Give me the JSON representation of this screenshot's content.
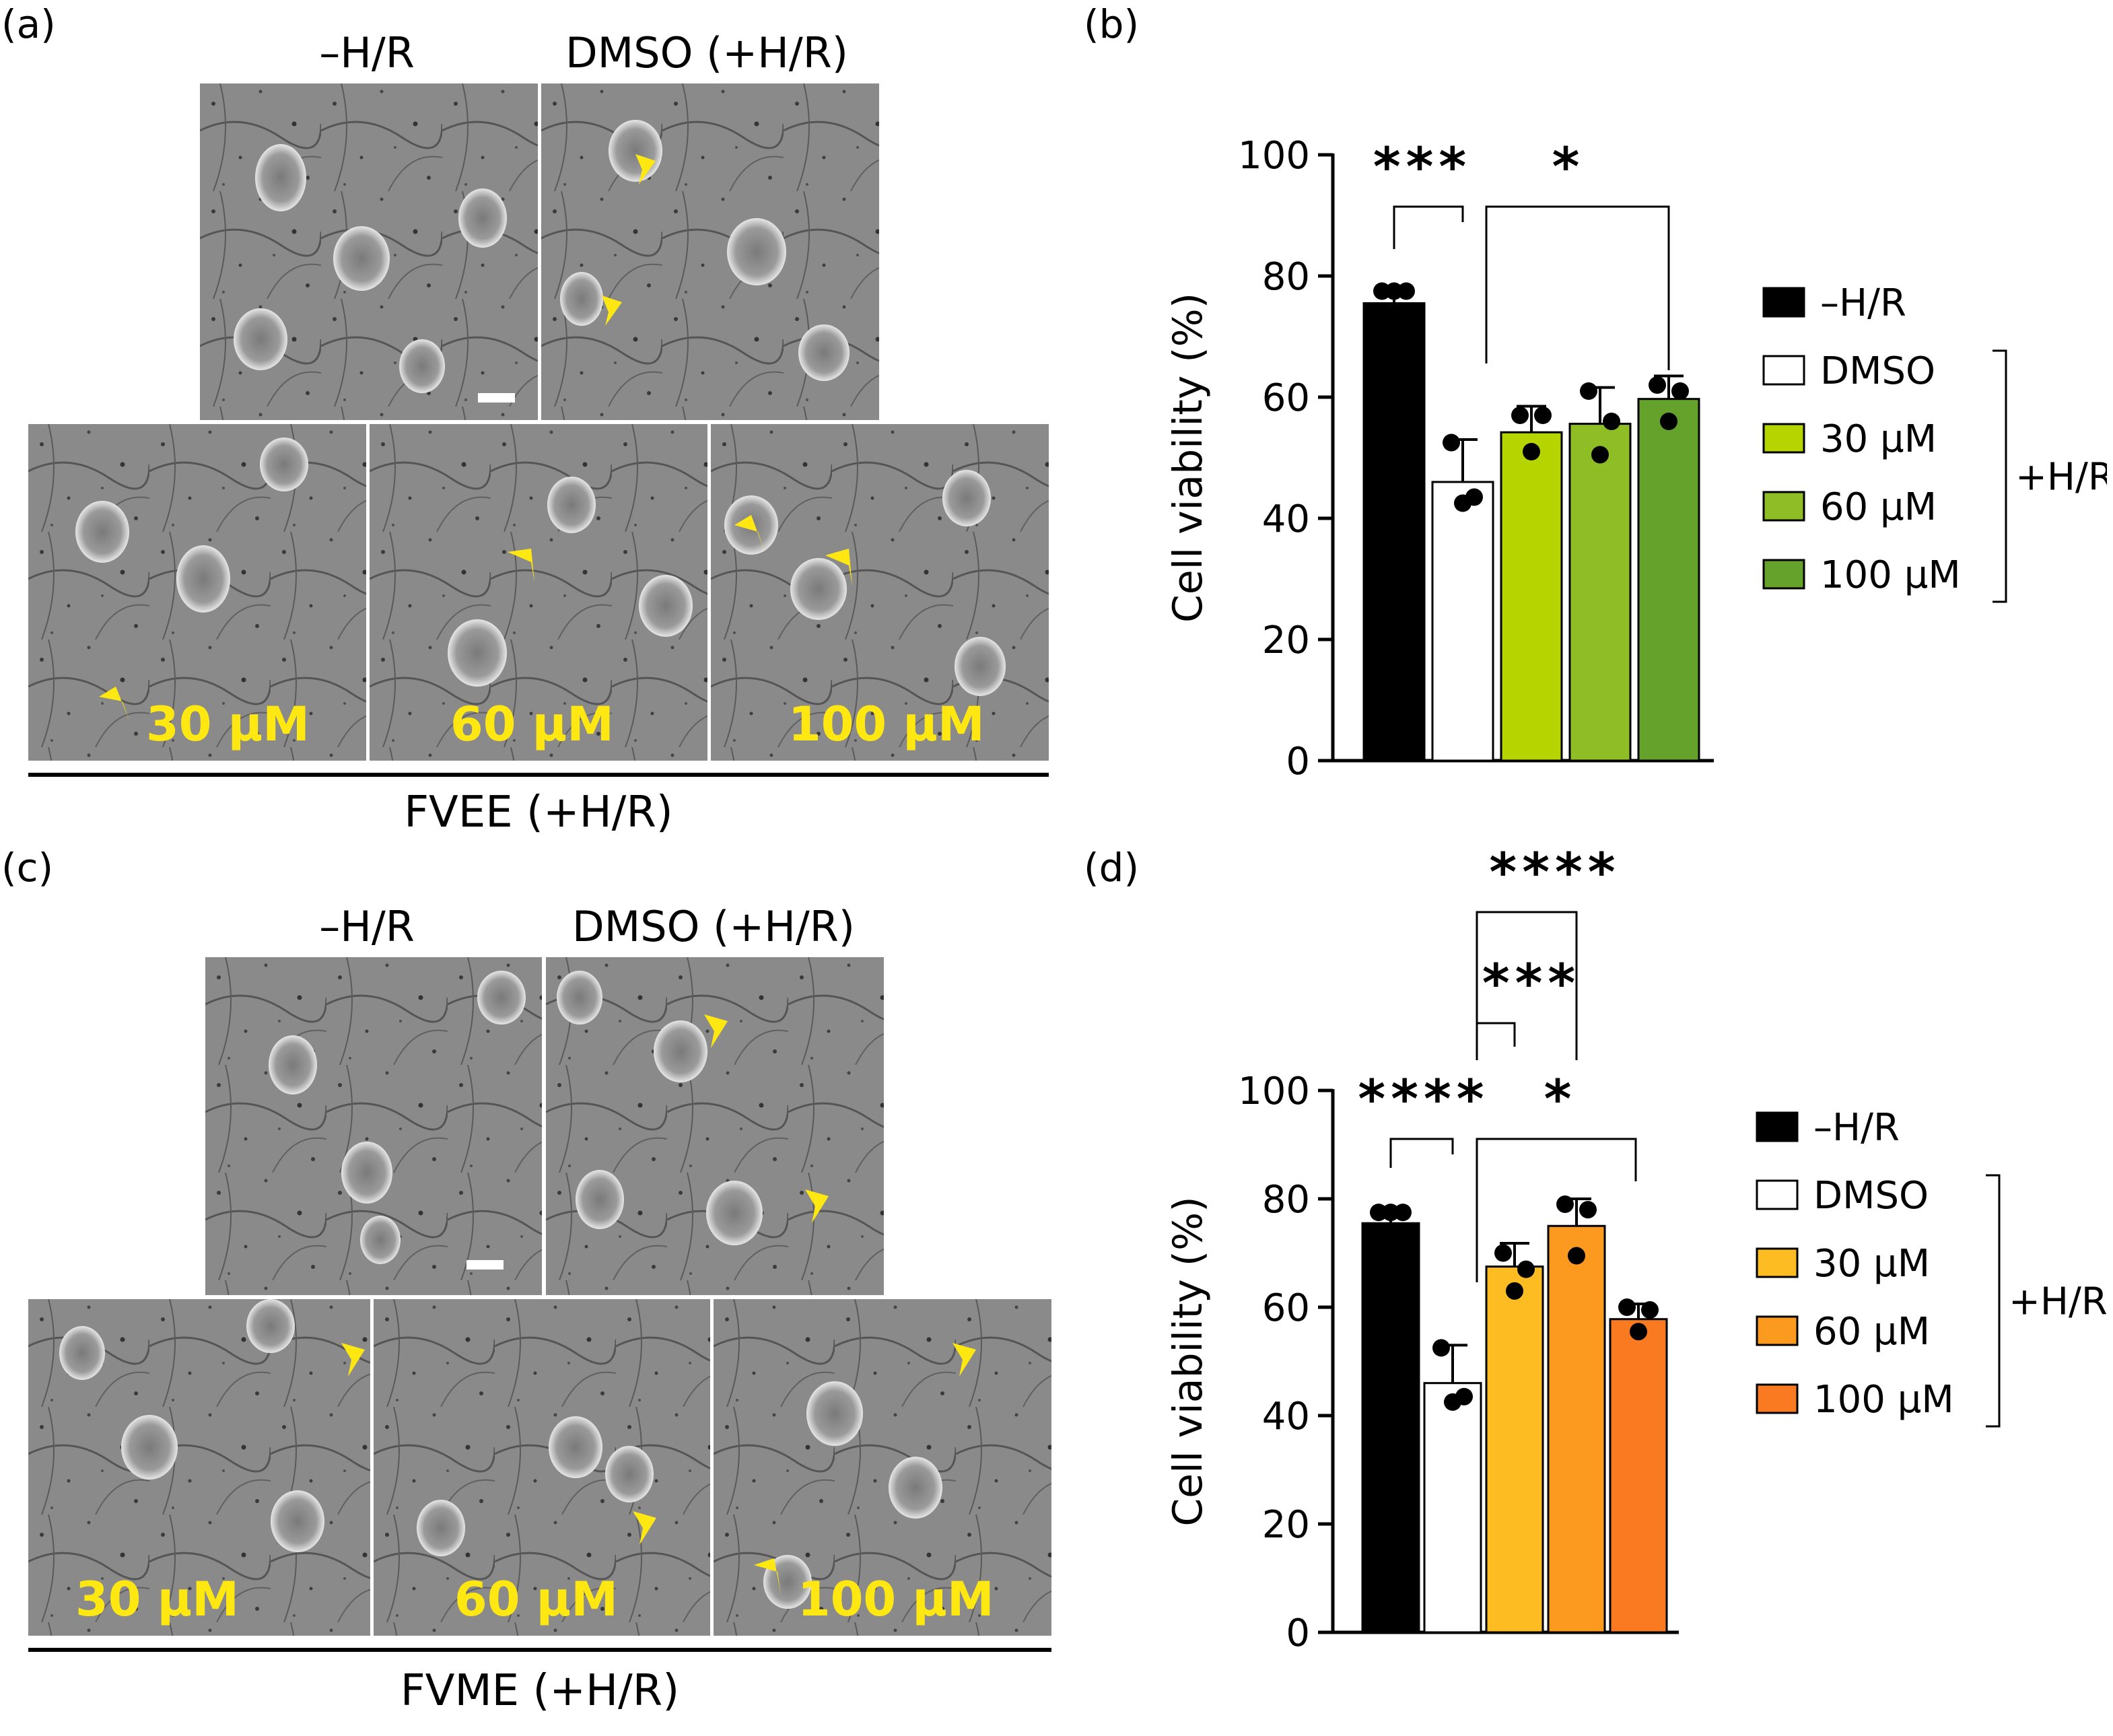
{
  "panels": {
    "a": {
      "letter": "(a)",
      "titles": {
        "left": "–H/R",
        "right": "DMSO (+H/R)"
      },
      "concentrations": [
        "30 μM",
        "60 μM",
        "100 μM"
      ],
      "group_label": "FVEE (+H/R)"
    },
    "b": {
      "letter": "(b)"
    },
    "c": {
      "letter": "(c)",
      "titles": {
        "left": "–H/R",
        "right": "DMSO (+H/R)"
      },
      "concentrations": [
        "30 μM",
        "60 μM",
        "100 μM"
      ],
      "group_label": "FVME (+H/R)"
    },
    "d": {
      "letter": "(d)"
    }
  },
  "colors": {
    "arrow": "#ffe812",
    "label": "#ffe812"
  },
  "chart_data": [
    {
      "type": "bar",
      "panel": "b",
      "ylabel": "Cell viability (%)",
      "ylim": [
        0,
        100
      ],
      "yticks": [
        0,
        20,
        40,
        60,
        80,
        100
      ],
      "categories": [
        "–H/R",
        "DMSO",
        "30 μM",
        "60 μM",
        "100 μM"
      ],
      "values": [
        75.5,
        46,
        54.2,
        55.6,
        59.7
      ],
      "errors": [
        2.5,
        7,
        4.3,
        6,
        3.8
      ],
      "points": [
        [
          77.5,
          77.5,
          77.5
        ],
        [
          52.5,
          43.5,
          42.5
        ],
        [
          57,
          57,
          51
        ],
        [
          61,
          56,
          50.5
        ],
        [
          62,
          61,
          56
        ]
      ],
      "colors": [
        "#000000",
        "#ffffff",
        "#b5d400",
        "#8fbd25",
        "#64a22c"
      ],
      "legend": [
        "–H/R",
        "DMSO",
        "30 μM",
        "60 μM",
        "100 μM"
      ],
      "bracket_label": "+H/R",
      "significance": [
        {
          "from": 0,
          "to": 1,
          "label": "***"
        },
        {
          "from": 1,
          "to": 4,
          "label": "*"
        }
      ]
    },
    {
      "type": "bar",
      "panel": "d",
      "ylabel": "Cell viability (%)",
      "ylim": [
        0,
        100
      ],
      "yticks": [
        0,
        20,
        40,
        60,
        80,
        100
      ],
      "categories": [
        "–H/R",
        "DMSO",
        "30 μM",
        "60 μM",
        "100 μM"
      ],
      "values": [
        75.5,
        46,
        67.5,
        75,
        57.8
      ],
      "errors": [
        2.5,
        7,
        4.3,
        5,
        2.8
      ],
      "points": [
        [
          77.5,
          77.5,
          77.5
        ],
        [
          52.5,
          43.5,
          42.5
        ],
        [
          70,
          67,
          63
        ],
        [
          79,
          78,
          69.5
        ],
        [
          60,
          59.5,
          55.5
        ]
      ],
      "colors": [
        "#000000",
        "#ffffff",
        "#fdbd22",
        "#fb9a1f",
        "#f97a20"
      ],
      "legend": [
        "–H/R",
        "DMSO",
        "30 μM",
        "60 μM",
        "100 μM"
      ],
      "bracket_label": "+H/R",
      "significance": [
        {
          "from": 0,
          "to": 1,
          "label": "****"
        },
        {
          "from": 1,
          "to": 4,
          "label": "*"
        },
        {
          "from": 1,
          "to": 2,
          "label": "***"
        },
        {
          "from": 1,
          "to": 3,
          "label": "****"
        }
      ]
    }
  ]
}
